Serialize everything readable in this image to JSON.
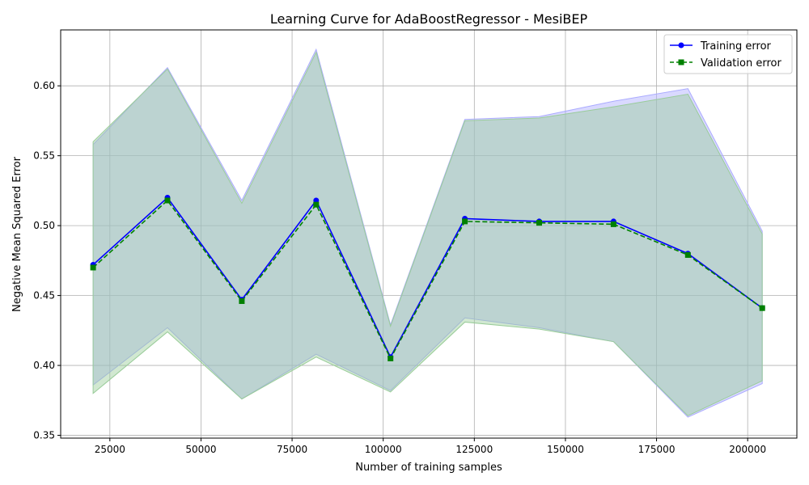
{
  "chart_data": {
    "type": "line",
    "title": "Learning Curve for AdaBoostRegressor - MesiBEP",
    "xlabel": "Number of training samples",
    "ylabel": "Negative Mean Squared Error",
    "xlim": [
      11500,
      213500
    ],
    "ylim": [
      0.348,
      0.64
    ],
    "xticks": [
      25000,
      50000,
      75000,
      100000,
      125000,
      150000,
      175000,
      200000
    ],
    "xtick_labels": [
      "25000",
      "50000",
      "75000",
      "100000",
      "125000",
      "150000",
      "175000",
      "200000"
    ],
    "yticks": [
      0.35,
      0.4,
      0.45,
      0.5,
      0.55,
      0.6
    ],
    "ytick_labels": [
      "0.35",
      "0.40",
      "0.45",
      "0.50",
      "0.55",
      "0.60"
    ],
    "grid": true,
    "legend_position": "top-right",
    "x": [
      20400,
      40800,
      61200,
      81600,
      102000,
      122400,
      142800,
      163200,
      183600,
      204000
    ],
    "series": [
      {
        "name": "Training error",
        "color": "#0000ff",
        "band_color": "#aaaaff",
        "marker": "circle",
        "linestyle": "solid",
        "values": [
          0.472,
          0.52,
          0.447,
          0.518,
          0.406,
          0.505,
          0.503,
          0.503,
          0.48,
          0.441
        ],
        "upper": [
          0.558,
          0.613,
          0.518,
          0.626,
          0.429,
          0.576,
          0.578,
          0.589,
          0.598,
          0.496
        ],
        "lower": [
          0.386,
          0.427,
          0.376,
          0.408,
          0.382,
          0.434,
          0.427,
          0.417,
          0.363,
          0.387
        ]
      },
      {
        "name": "Validation error",
        "color": "#008000",
        "band_color": "#99cc99",
        "marker": "square",
        "linestyle": "dashed",
        "values": [
          0.47,
          0.518,
          0.446,
          0.515,
          0.405,
          0.503,
          0.502,
          0.501,
          0.479,
          0.441
        ],
        "upper": [
          0.56,
          0.612,
          0.516,
          0.624,
          0.428,
          0.575,
          0.577,
          0.585,
          0.594,
          0.494
        ],
        "lower": [
          0.38,
          0.424,
          0.376,
          0.406,
          0.381,
          0.431,
          0.426,
          0.417,
          0.364,
          0.389
        ]
      }
    ]
  }
}
